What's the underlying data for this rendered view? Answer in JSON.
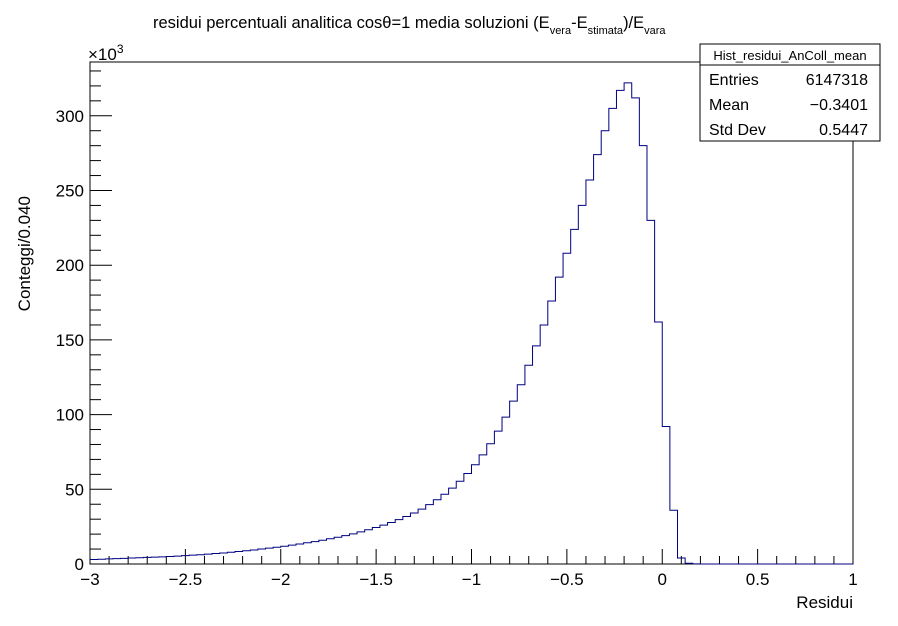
{
  "chart_data": {
    "type": "histogram",
    "title_parts": {
      "main": "residui percentuali analitica cosθ=1 media soluzioni (E",
      "sub1": "vera",
      "dash": "-E",
      "sub2": "stimata",
      "slash": ")/E",
      "sub3": "vara"
    },
    "xlabel": "Residui",
    "ylabel": "Conteggi/0.040",
    "y_multiplier": "×10",
    "y_multiplier_exp": "3",
    "xlim": [
      -3,
      1
    ],
    "ylim": [
      0,
      336
    ],
    "bin_width": 0.04,
    "x_ticks": [
      -3,
      -2.5,
      -2,
      -1.5,
      -1,
      -0.5,
      0,
      0.5,
      1
    ],
    "x_tick_labels": [
      "−3",
      "−2.5",
      "−2",
      "−1.5",
      "−1",
      "−0.5",
      "0",
      "0.5",
      "1"
    ],
    "y_ticks": [
      0,
      50,
      100,
      150,
      200,
      250,
      300
    ],
    "y_tick_labels": [
      "0",
      "50",
      "100",
      "150",
      "200",
      "250",
      "300"
    ],
    "line_color": "#000080",
    "bin_edges_start": -3.0,
    "counts_thousands": [
      3.0,
      3.2,
      3.4,
      3.6,
      3.8,
      4.0,
      4.2,
      4.4,
      4.6,
      4.8,
      5.0,
      5.3,
      5.6,
      5.9,
      6.2,
      6.6,
      7.0,
      7.4,
      7.9,
      8.4,
      8.9,
      9.4,
      10.0,
      10.6,
      11.2,
      11.9,
      12.6,
      13.4,
      14.2,
      15.0,
      15.9,
      16.9,
      17.9,
      19.0,
      20.2,
      21.5,
      22.9,
      24.4,
      26.0,
      27.8,
      29.7,
      31.8,
      34.1,
      36.7,
      39.7,
      43.0,
      46.7,
      50.8,
      55.4,
      60.6,
      66.4,
      73.0,
      80.5,
      88.9,
      98.3,
      109.0,
      120.0,
      133.0,
      146.0,
      160.0,
      176.0,
      192.0,
      208.0,
      224.0,
      240.0,
      257.0,
      274.0,
      290.0,
      305.0,
      317.0,
      322.0,
      312.0,
      280.0,
      230.0,
      162.0,
      92.0,
      36.0,
      4.0,
      0.5,
      0.1,
      0.0,
      0.0,
      0.0,
      0.0,
      0.0,
      0.0,
      0.0,
      0.0,
      0.0,
      0.0,
      0.0,
      0.0,
      0.0,
      0.0,
      0.0,
      0.0,
      0.0,
      0.0,
      0.0,
      0.0
    ],
    "stats": {
      "name": "Hist_residui_AnColl_mean",
      "rows": [
        {
          "label": "Entries",
          "value": "6147318"
        },
        {
          "label": "Mean",
          "value": "−0.3401"
        },
        {
          "label": "Std Dev",
          "value": "0.5447"
        }
      ]
    }
  }
}
